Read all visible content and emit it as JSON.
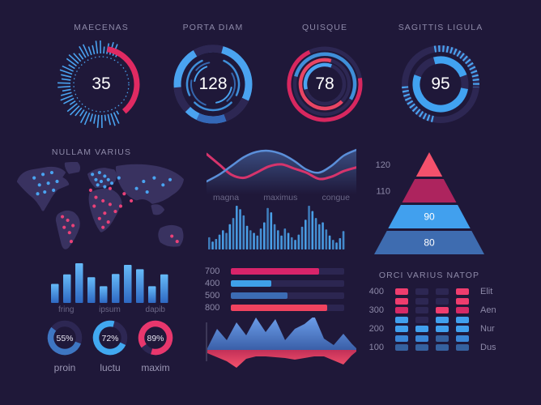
{
  "theme": {
    "bg": "#1f1839",
    "track": "#2d2753",
    "blue": "#4aa3f0",
    "steel": "#3c6cb4",
    "pink": "#e02a62",
    "red": "#f0435f",
    "title_color": "#8d89a8",
    "value_color": "#ffffff",
    "map_fill": "#393260",
    "map_dot_blue": "#4aa3f0",
    "map_dot_pink": "#ea4178"
  },
  "gauges": [
    {
      "label": "MAECENAS",
      "value": "35"
    },
    {
      "label": "PORTA DIAM",
      "value": "128"
    },
    {
      "label": "QUISQUE",
      "value": "78"
    },
    {
      "label": "SAGITTIS LIGULA",
      "value": "95"
    }
  ],
  "map_section": {
    "title": "NULLAM VARIUS",
    "blue_dots": [
      [
        24,
        18
      ],
      [
        34,
        14
      ],
      [
        44,
        12
      ],
      [
        30,
        26
      ],
      [
        40,
        24
      ],
      [
        50,
        22
      ],
      [
        36,
        34
      ],
      [
        46,
        32
      ],
      [
        28,
        36
      ],
      [
        90,
        14
      ],
      [
        98,
        12
      ],
      [
        104,
        16
      ],
      [
        94,
        20
      ],
      [
        100,
        22
      ],
      [
        108,
        20
      ],
      [
        96,
        26
      ],
      [
        104,
        28
      ],
      [
        112,
        24
      ],
      [
        120,
        18
      ],
      [
        148,
        22
      ],
      [
        160,
        18
      ],
      [
        170,
        26
      ],
      [
        178,
        20
      ],
      [
        140,
        30
      ],
      [
        152,
        34
      ]
    ],
    "pink_dots": [
      [
        88,
        32
      ],
      [
        110,
        30
      ],
      [
        56,
        62
      ],
      [
        62,
        66
      ],
      [
        68,
        72
      ],
      [
        64,
        80
      ],
      [
        58,
        74
      ],
      [
        66,
        90
      ],
      [
        94,
        40
      ],
      [
        102,
        44
      ],
      [
        110,
        48
      ],
      [
        116,
        56
      ],
      [
        104,
        58
      ],
      [
        98,
        64
      ],
      [
        108,
        68
      ],
      [
        102,
        74
      ],
      [
        92,
        50
      ],
      [
        122,
        50
      ],
      [
        180,
        84
      ],
      [
        186,
        90
      ],
      [
        126,
        36
      ],
      [
        134,
        44
      ]
    ]
  },
  "chart_data": [
    {
      "type": "line",
      "name": "wave-chart",
      "legend": [
        "magna",
        "maximus",
        "congue"
      ],
      "series": [
        {
          "name": "blue",
          "color": "#5b8fd9",
          "values": [
            75,
            62,
            45,
            28,
            18,
            16,
            22,
            35,
            52,
            58,
            45,
            25,
            14
          ]
        },
        {
          "name": "pink",
          "color": "#d6346c",
          "values": [
            22,
            42,
            62,
            68,
            58,
            46,
            42,
            50,
            58,
            70,
            66,
            55,
            48
          ]
        }
      ]
    },
    {
      "type": "bar",
      "name": "equalizer-chart",
      "color": "#4aa0e8",
      "values": [
        28,
        18,
        24,
        34,
        44,
        38,
        58,
        72,
        100,
        92,
        78,
        54,
        44,
        38,
        32,
        48,
        62,
        95,
        85,
        58,
        44,
        32,
        48,
        38,
        28,
        22,
        34,
        52,
        68,
        100,
        88,
        72,
        58,
        62,
        46,
        32,
        22,
        16,
        26,
        42
      ]
    },
    {
      "type": "hbar",
      "name": "progress-bars",
      "rows": [
        {
          "label": "700",
          "pct": 78,
          "color": "#d8246a"
        },
        {
          "label": "400",
          "pct": 36,
          "color": "#3fa0e8"
        },
        {
          "label": "500",
          "pct": 50,
          "color": "#3c6cb4"
        },
        {
          "label": "800",
          "pct": 85,
          "color": "#f0435f"
        }
      ]
    },
    {
      "type": "pyramid",
      "name": "pyramid-chart",
      "layers": [
        {
          "label": "120",
          "color": "#f4516c",
          "label_pos": "outside"
        },
        {
          "label": "110",
          "color": "#ad245e",
          "label_pos": "outside"
        },
        {
          "label": "90",
          "color": "#41a0ee",
          "label_pos": "inside"
        },
        {
          "label": "80",
          "color": "#3e6cb0",
          "label_pos": "inside"
        }
      ]
    },
    {
      "type": "bar",
      "name": "column-chart",
      "labels": [
        "fring",
        "ipsum",
        "dapib"
      ],
      "values": [
        48,
        72,
        100,
        65,
        42,
        73,
        96,
        85,
        42,
        72
      ]
    },
    {
      "type": "donut",
      "name": "donut-gauges",
      "items": [
        {
          "text": "55%",
          "value": 55,
          "label": "proin",
          "color": "#3e76c2",
          "start": 110
        },
        {
          "text": "72%",
          "value": 72,
          "label": "luctu",
          "color": "#41a8f0",
          "start": 115
        },
        {
          "text": "89%",
          "value": 89,
          "label": "maxim",
          "color": "#e8376d",
          "start": 235
        }
      ]
    },
    {
      "type": "heatmap",
      "name": "orci-chart",
      "title": "ORCI VARIUS NATOP",
      "y_labels": [
        "400",
        "300",
        "200",
        "100"
      ],
      "row_labels": [
        "Elit",
        "Aen",
        "Nur",
        "Dus"
      ],
      "cell_colors": {
        "pink": "#ef3d6e",
        "pink2": "#d62a66",
        "blue": "#41a0ee",
        "blue2": "#3a86d6",
        "steel": "#35619f",
        "off": "#2d2753"
      },
      "columns": [
        [
          "pink",
          "pink",
          "pink2",
          "blue",
          "blue",
          "blue2",
          "steel"
        ],
        [
          "off",
          "off",
          "off",
          "off",
          "blue",
          "blue2",
          "steel"
        ],
        [
          "off",
          "off",
          "pink",
          "blue",
          "blue",
          "steel",
          "steel"
        ],
        [
          "pink",
          "pink",
          "pink2",
          "blue",
          "blue",
          "blue2",
          "steel"
        ]
      ]
    },
    {
      "type": "area",
      "name": "mirror-area-chart",
      "x": [
        4,
        16,
        28,
        40,
        52,
        64,
        76,
        88,
        100,
        112,
        124,
        136,
        148,
        160,
        172,
        182,
        188
      ],
      "blue": [
        2,
        26,
        12,
        34,
        18,
        40,
        22,
        38,
        12,
        26,
        32,
        42,
        14,
        6,
        20,
        8,
        2
      ],
      "red": [
        4,
        9,
        14,
        22,
        11,
        8,
        8,
        9,
        10,
        12,
        10,
        8,
        8,
        13,
        18,
        7,
        2
      ]
    }
  ]
}
